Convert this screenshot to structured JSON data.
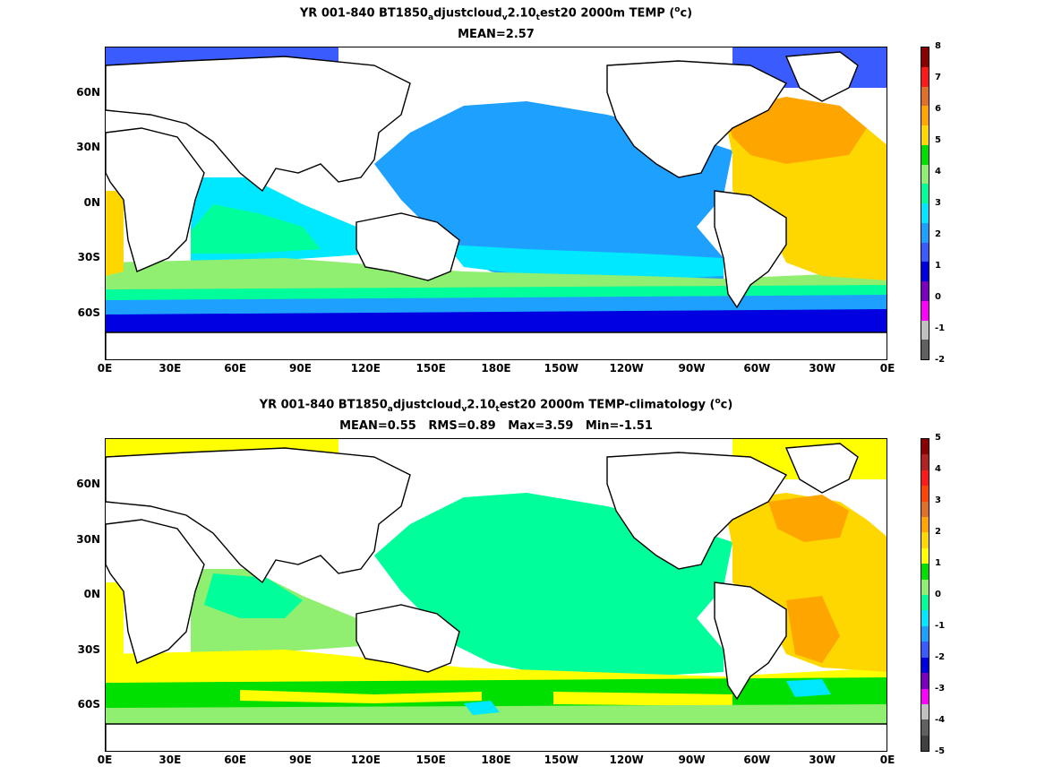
{
  "top": {
    "title_pre": "YR 001-840 BT1850",
    "sub1": "a",
    "mid1": "djustcloud",
    "sub2": "v",
    "mid2": "2.10",
    "sub3": "t",
    "title_post_a": "est20 2000m TEMP (",
    "sup": "o",
    "title_post_b": "c)",
    "stats": "MEAN=2.57",
    "colorbar_labels": [
      "8",
      "7",
      "6",
      "5",
      "4",
      "3",
      "2",
      "1",
      "0",
      "-1",
      "-2"
    ],
    "colorbar_colors": [
      "#8b0000",
      "#ff1a1a",
      "#e07028",
      "#ffa500",
      "#ffd700",
      "#00e000",
      "#90ee70",
      "#00ff9a",
      "#00e8ff",
      "#1ea0ff",
      "#3a5cff",
      "#0000e0",
      "#7a00c0",
      "#ff00ff",
      "#c0c0c0",
      "#606060"
    ]
  },
  "bottom": {
    "title_pre": "YR 001-840 BT1850",
    "sub1": "a",
    "mid1": "djustcloud",
    "sub2": "v",
    "mid2": "2.10",
    "sub3": "t",
    "title_post_a": "est20 2000m TEMP-climatology (",
    "sup": "o",
    "title_post_b": "c)",
    "stats": "MEAN=0.55   RMS=0.89   Max=3.59   Min=-1.51",
    "colorbar_labels": [
      "5",
      "4",
      "3",
      "2",
      "1",
      "0",
      "-1",
      "-2",
      "-3",
      "-4",
      "-5"
    ],
    "colorbar_colors": [
      "#8b0000",
      "#b22222",
      "#ff1a1a",
      "#ff4500",
      "#e07028",
      "#ffa500",
      "#ffd700",
      "#ffff00",
      "#00e000",
      "#90ee70",
      "#00ff9a",
      "#00e8ff",
      "#1ea0ff",
      "#3a5cff",
      "#0000e0",
      "#7a00c0",
      "#ff00ff",
      "#c0c0c0",
      "#606060",
      "#404040"
    ]
  },
  "axes": {
    "lat_labels": [
      "60N",
      "30N",
      "0N",
      "30S",
      "60S"
    ],
    "lon_labels": [
      "0E",
      "30E",
      "60E",
      "90E",
      "120E",
      "150E",
      "180E",
      "150W",
      "120W",
      "90W",
      "60W",
      "30W",
      "0E"
    ]
  },
  "colors": {
    "land": "#ffffff",
    "coast": "#000000"
  }
}
